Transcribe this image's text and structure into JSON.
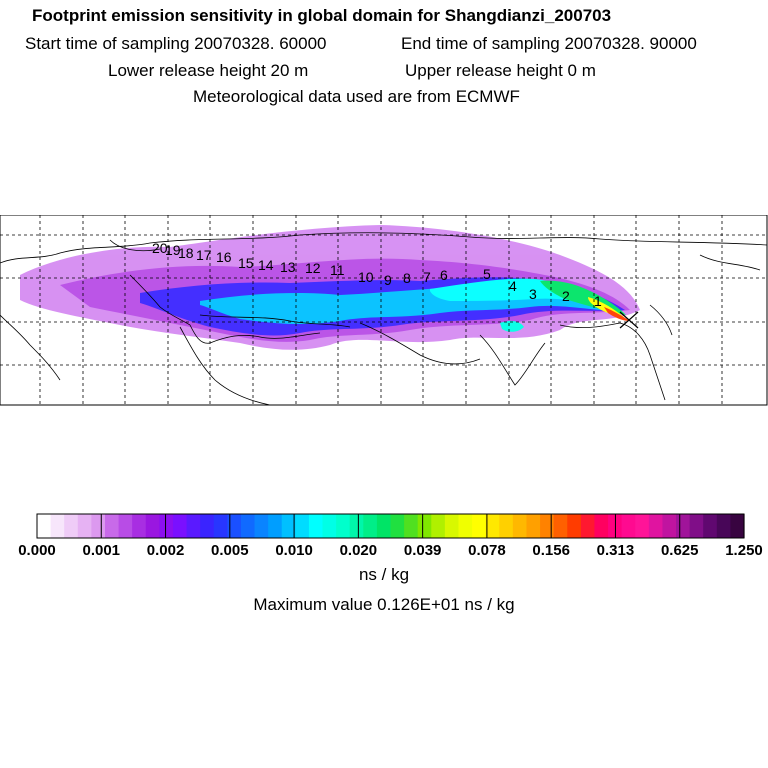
{
  "header": {
    "title": "Footprint emission sensitivity in global domain for Shangdianzi_200703",
    "start_label": "Start time of sampling 20070328. 60000",
    "end_label": "End time of sampling 20070328. 90000",
    "lower_label": "Lower release height   20 m",
    "upper_label": "Upper release height    0 m",
    "met_label": "Meteorological data used are from ECMWF"
  },
  "map": {
    "day_labels": [
      "1",
      "2",
      "3",
      "4",
      "5",
      "6",
      "7",
      "8",
      "9",
      "10",
      "11",
      "12",
      "13",
      "14",
      "15",
      "16",
      "17",
      "18",
      "19",
      "20"
    ],
    "station_marker": "x-icon"
  },
  "colorbar": {
    "tick_labels": [
      "0.000",
      "0.001",
      "0.002",
      "0.005",
      "0.010",
      "0.020",
      "0.039",
      "0.078",
      "0.156",
      "0.313",
      "0.625",
      "1.250"
    ],
    "tick_values": [
      0.0,
      0.001,
      0.002,
      0.005,
      0.01,
      0.02,
      0.039,
      0.078,
      0.156,
      0.313,
      0.625,
      1.25
    ],
    "colors": [
      "#ffffff",
      "#f7e6fb",
      "#efccf7",
      "#e6b2f3",
      "#dc99ef",
      "#c86ae9",
      "#b84ce6",
      "#a82ee2",
      "#9a17e0",
      "#8c0ff0",
      "#7a10ff",
      "#5a1aff",
      "#3a24ff",
      "#2836ff",
      "#1a50ff",
      "#106aff",
      "#0a84ff",
      "#009eff",
      "#00c0ff",
      "#00dcff",
      "#00ffff",
      "#00ffe6",
      "#00ffcc",
      "#00f6aa",
      "#00ee88",
      "#00e466",
      "#20e040",
      "#50e020",
      "#80e800",
      "#b0f000",
      "#d8f800",
      "#f0ff00",
      "#ffff00",
      "#ffe800",
      "#ffd000",
      "#ffb800",
      "#ffa000",
      "#ff8200",
      "#ff6000",
      "#ff3c00",
      "#ff1830",
      "#ff0060",
      "#ff0080",
      "#ff0a90",
      "#ff1498",
      "#e014a0",
      "#c014a0",
      "#a0149a",
      "#800e88",
      "#600870",
      "#480658",
      "#380440"
    ],
    "unit_label": "ns / kg",
    "max_label": "Maximum value  0.126E+01 ns / kg"
  }
}
